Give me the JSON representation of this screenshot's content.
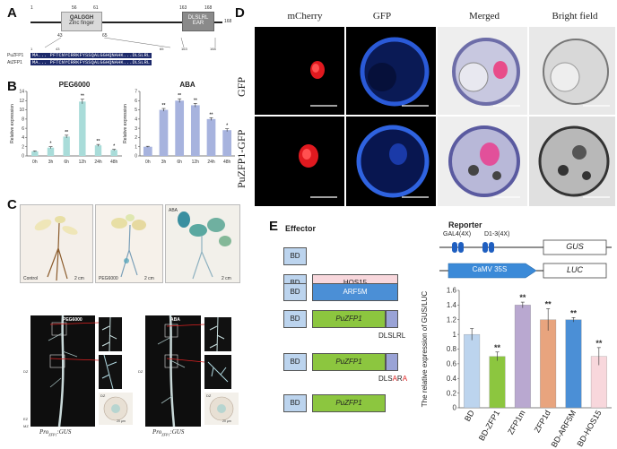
{
  "panel_labels": {
    "a": "A",
    "b": "B",
    "c": "C",
    "d": "D",
    "e": "E"
  },
  "panelA": {
    "pos_start": "1",
    "pos_56": "56",
    "pos_61": "61",
    "pos_163": "163",
    "pos_168a": "168",
    "pos_168b": "168",
    "pos_43": "43",
    "pos_65": "65",
    "zinc_line1": "QALGGH",
    "zinc_line2": "Zinc finger",
    "ear_line1": "DLSLRL",
    "ear_line2": "EAR",
    "seq_num1": "1",
    "seq_num43": "43",
    "seq_num65": "65",
    "seq_num163": "163",
    "seq_num168": "168",
    "seq_rows": [
      {
        "name": "PuZFP1",
        "seq": "MA... PFTCNYCRRKFYSSQALGGHQNAHK...DLSLRL"
      },
      {
        "name": "AtZFP1",
        "seq": "MA... PFTCNYCRRKFYSSQALGGHQNAHK...DLSLRL"
      }
    ]
  },
  "panelB": {
    "colors": {
      "peg": "#a9dcd9",
      "aba": "#a7b3de"
    }
  },
  "panelC": {
    "control": "Control",
    "peg": "PEG6000",
    "aba": "ABA",
    "scale1": "2 cm",
    "scale2": "2 cm",
    "scale3": "2 cm",
    "peg_label": "PEG6000",
    "aba_label": "ABA",
    "dz1": "DZ",
    "ez1": "EZ",
    "mz1": "MZ",
    "dz2": "DZ",
    "dz3": "DZ",
    "dz4": "DZ",
    "scale_small1": "20 μm",
    "scale_small2": "20 μm",
    "pro1": "Pro",
    "pro1_sub": "ZFP1",
    "pro1_rest": ":GUS",
    "pro2": "Pro",
    "pro2_sub": "ZFP1",
    "pro2_rest": ":GUS"
  },
  "panelD": {
    "headers": [
      "mCherry",
      "GFP",
      "Merged",
      "Bright field"
    ],
    "rows": [
      "GFP",
      "PuZFP1-GFP"
    ]
  },
  "panelE": {
    "effector": "Effector",
    "reporter": "Reporter",
    "bd": "BD",
    "hos15": "HOS15",
    "arf5m": "ARF5M",
    "puzfp1": "PuZFP1",
    "dlslrl": "DLSLRL",
    "dlsara_pre": "DLS",
    "dlsara_a1": "A",
    "dlsara_r": "R",
    "dlsara_a2": "A",
    "gal4": "GAL4(4X)",
    "d13": "D1-3(4X)",
    "gus": "GUS",
    "camv": "CaMV 35S",
    "luc": "LUC"
  },
  "chart_data": [
    {
      "type": "bar",
      "title": "PEG6000",
      "ylabel": "Relative expression",
      "categories": [
        "0h",
        "3h",
        "6h",
        "12h",
        "24h",
        "48h"
      ],
      "values": [
        1.0,
        1.8,
        4.2,
        11.8,
        2.3,
        1.3
      ],
      "errors": [
        0.1,
        0.2,
        0.3,
        0.5,
        0.2,
        0.15
      ],
      "sig": [
        "",
        "*",
        "**",
        "**",
        "**",
        "*"
      ],
      "ylim": [
        0,
        14
      ],
      "yticks": [
        0,
        2,
        4,
        6,
        8,
        10,
        12,
        14
      ]
    },
    {
      "type": "bar",
      "title": "ABA",
      "ylabel": "Relative expression",
      "categories": [
        "0h",
        "3h",
        "6h",
        "12h",
        "24h",
        "48h"
      ],
      "values": [
        1.0,
        5.0,
        6.0,
        5.5,
        4.0,
        2.8
      ],
      "errors": [
        0.05,
        0.15,
        0.2,
        0.2,
        0.15,
        0.15
      ],
      "sig": [
        "",
        "**",
        "**",
        "**",
        "**",
        "*"
      ],
      "ylim": [
        0,
        7
      ],
      "yticks": [
        0,
        1,
        2,
        3,
        4,
        5,
        6,
        7
      ]
    },
    {
      "type": "bar",
      "ylabel": "The relative expression of GUS/LUC",
      "categories": [
        "BD",
        "BD-ZFP1",
        "ZFP1m",
        "ZFP1d",
        "BD-ARF5M",
        "BD-HOS15"
      ],
      "values": [
        1.0,
        0.7,
        1.4,
        1.2,
        1.2,
        0.7
      ],
      "errors": [
        0.08,
        0.06,
        0.04,
        0.15,
        0.03,
        0.12
      ],
      "sig": [
        "",
        "**",
        "**",
        "**",
        "**",
        "**"
      ],
      "colors": [
        "#bcd4ee",
        "#8cc63f",
        "#b9a8d0",
        "#e8a47e",
        "#4b8fd6",
        "#f8d7dc"
      ],
      "ylim": [
        0,
        1.6
      ],
      "yticks": [
        "0",
        "0.2",
        "0.4",
        "0.6",
        "0.8",
        "1",
        "1.2",
        "1.4",
        "1.6"
      ]
    }
  ]
}
